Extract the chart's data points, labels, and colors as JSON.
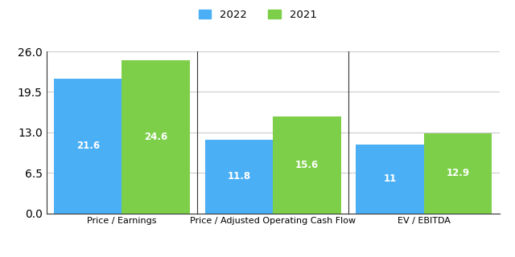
{
  "categories": [
    "Price / Earnings",
    "Price / Adjusted Operating Cash Flow",
    "EV / EBITDA"
  ],
  "values_2022": [
    21.6,
    11.8,
    11.0
  ],
  "values_2021": [
    24.6,
    15.6,
    12.9
  ],
  "color_2022": "#4aaff5",
  "color_2021": "#7dcf4a",
  "label_2022": "2022",
  "label_2021": "2021",
  "ylim": [
    0,
    26
  ],
  "yticks": [
    0,
    6.5,
    13,
    19.5,
    26
  ],
  "background_color": "#ffffff",
  "grid_color": "#cccccc",
  "bar_width": 0.45,
  "label_fontsize": 8,
  "value_fontsize": 8.5,
  "legend_fontsize": 9.5,
  "value_labels_2022": [
    "21.6",
    "11.8",
    "11"
  ],
  "value_labels_2021": [
    "24.6",
    "15.6",
    "12.9"
  ]
}
